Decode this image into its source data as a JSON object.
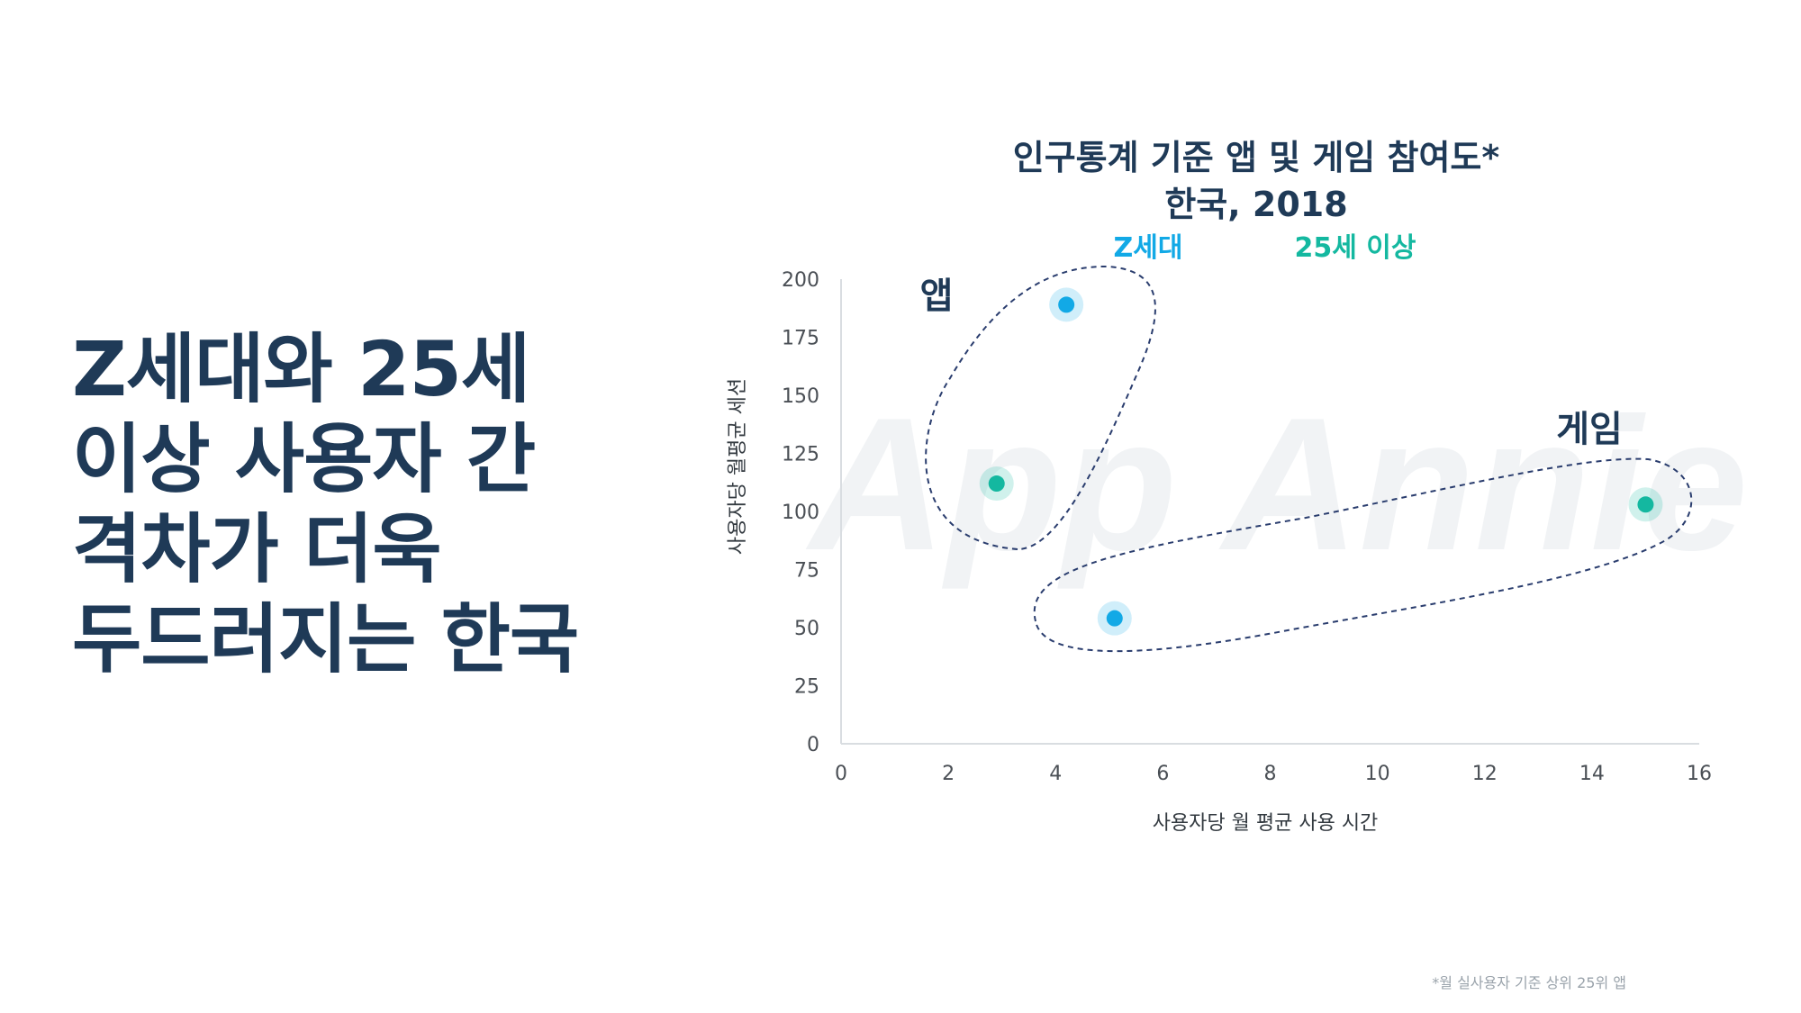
{
  "headline": {
    "lines": [
      "Z세대와 25세",
      "이상 사용자 간",
      "격차가 더욱",
      "두드러지는 한국"
    ]
  },
  "footnote": "*월 실사용자 기준 상위 25위 앱",
  "watermark": "App Annie",
  "colors": {
    "headline": "#1f3a57",
    "z_gen": "#12a9e6",
    "over25": "#14b8a0",
    "dashed": "#2a3d6e",
    "axis_text": "#4a4f55"
  },
  "chart_data": {
    "type": "scatter",
    "title": "인구통계 기준 앱 및 게임 참여도*",
    "subtitle": "한국, 2018",
    "xlabel": "사용자당 월 평균 사용 시간",
    "ylabel": "사용자당 월평균 세션",
    "xlim": [
      0,
      16
    ],
    "ylim": [
      0,
      200
    ],
    "xticks": [
      0,
      2,
      4,
      6,
      8,
      10,
      12,
      14,
      16
    ],
    "yticks": [
      0,
      25,
      50,
      75,
      100,
      125,
      150,
      175,
      200
    ],
    "grid": false,
    "legend_position": "top",
    "series": [
      {
        "name": "Z세대",
        "color": "#12a9e6",
        "points": [
          {
            "x": 4.2,
            "y": 189
          },
          {
            "x": 5.1,
            "y": 54
          }
        ]
      },
      {
        "name": "25세 이상",
        "color": "#14b8a0",
        "points": [
          {
            "x": 2.9,
            "y": 112
          },
          {
            "x": 15.0,
            "y": 103
          }
        ]
      }
    ],
    "groups": [
      {
        "label": "앱"
      },
      {
        "label": "게임"
      }
    ]
  }
}
